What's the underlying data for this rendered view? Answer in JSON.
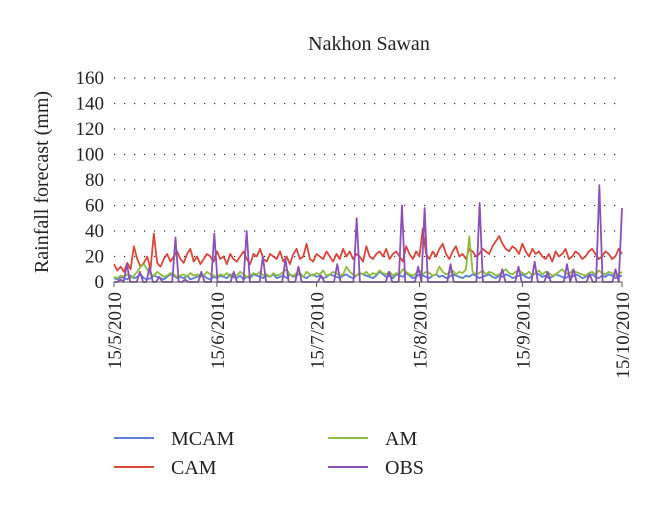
{
  "chart_data": {
    "type": "line",
    "title": "Nakhon Sawan",
    "xlabel": "",
    "ylabel": "Rainfall forecast (mm)",
    "ylim": [
      0,
      160
    ],
    "yticks": [
      0,
      20,
      40,
      60,
      80,
      100,
      120,
      140,
      160
    ],
    "x_start": "15/5/2010",
    "x_end": "15/10/2010",
    "x_tick_labels": [
      "15/5/2010",
      "15/6/2010",
      "15/7/2010",
      "15/8/2010",
      "15/9/2010",
      "15/10/2010"
    ],
    "grid": "horizontal dotted",
    "legend_position": "bottom",
    "colors": {
      "MCAM": "#5b7fd6",
      "CAM": "#d9463c",
      "AM": "#8fbc3f",
      "OBS": "#8b4fb8"
    },
    "series": [
      {
        "name": "MCAM",
        "values": [
          3,
          2,
          4,
          3,
          2,
          5,
          3,
          4,
          6,
          3,
          2,
          3,
          5,
          4,
          3,
          2,
          4,
          6,
          5,
          3,
          4,
          3,
          5,
          2,
          3,
          4,
          6,
          5,
          3,
          2,
          4,
          3,
          5,
          4,
          3,
          6,
          4,
          3,
          5,
          2,
          4,
          3,
          6,
          5,
          4,
          3,
          5,
          4,
          6,
          3,
          4,
          5,
          3,
          6,
          4,
          5,
          7,
          4,
          3,
          5,
          6,
          4,
          5,
          3,
          4,
          6,
          5,
          4,
          3,
          5,
          6,
          4,
          3,
          5,
          7,
          6,
          5,
          4,
          3,
          5,
          8,
          6,
          4,
          5,
          3,
          6,
          5,
          4,
          7,
          5,
          3,
          4,
          6,
          5,
          4,
          3,
          5,
          6,
          4,
          5,
          3,
          4,
          6,
          5,
          4,
          3,
          5,
          4,
          6,
          5,
          3,
          4,
          5,
          6,
          4,
          3,
          5,
          4,
          6,
          5,
          3,
          4,
          5,
          6,
          4,
          3,
          5,
          7,
          6,
          4,
          5,
          3,
          4,
          6,
          5,
          4,
          3,
          5,
          4,
          6,
          5,
          3,
          4,
          5,
          6,
          4,
          3,
          5,
          4,
          6,
          5,
          3,
          4,
          5
        ]
      },
      {
        "name": "CAM",
        "values": [
          14,
          9,
          12,
          8,
          15,
          10,
          28,
          18,
          12,
          15,
          20,
          10,
          38,
          15,
          12,
          18,
          22,
          16,
          20,
          24,
          18,
          15,
          22,
          26,
          16,
          20,
          14,
          18,
          22,
          20,
          16,
          24,
          18,
          20,
          14,
          22,
          18,
          16,
          20,
          24,
          18,
          14,
          22,
          20,
          26,
          18,
          16,
          22,
          20,
          18,
          24,
          16,
          20,
          14,
          22,
          26,
          18,
          20,
          30,
          18,
          16,
          22,
          20,
          18,
          24,
          20,
          16,
          22,
          18,
          26,
          20,
          24,
          18,
          22,
          20,
          16,
          28,
          20,
          18,
          22,
          24,
          20,
          26,
          18,
          22,
          24,
          20,
          16,
          28,
          22,
          18,
          24,
          20,
          42,
          22,
          18,
          24,
          20,
          26,
          30,
          22,
          18,
          24,
          28,
          20,
          22,
          18,
          26,
          24,
          20,
          22,
          26,
          24,
          22,
          28,
          32,
          36,
          30,
          26,
          24,
          28,
          26,
          22,
          30,
          24,
          20,
          26,
          22,
          24,
          20,
          18,
          22,
          16,
          24,
          20,
          22,
          26,
          18,
          20,
          24,
          22,
          18,
          20,
          24,
          26,
          22,
          18,
          20,
          24,
          22,
          18,
          20,
          26,
          22
        ]
      },
      {
        "name": "AM",
        "values": [
          4,
          3,
          5,
          4,
          6,
          3,
          5,
          8,
          12,
          14,
          10,
          6,
          5,
          8,
          6,
          4,
          5,
          7,
          6,
          4,
          5,
          6,
          4,
          7,
          5,
          6,
          4,
          5,
          8,
          6,
          5,
          4,
          6,
          5,
          7,
          4,
          6,
          5,
          8,
          6,
          4,
          5,
          7,
          6,
          8,
          5,
          6,
          4,
          7,
          5,
          6,
          8,
          10,
          6,
          5,
          7,
          6,
          4,
          8,
          6,
          5,
          7,
          6,
          9,
          5,
          6,
          8,
          7,
          5,
          6,
          12,
          8,
          6,
          5,
          7,
          6,
          8,
          5,
          7,
          6,
          9,
          7,
          6,
          8,
          5,
          7,
          6,
          10,
          8,
          6,
          5,
          7,
          9,
          6,
          8,
          7,
          5,
          6,
          12,
          8,
          6,
          7,
          9,
          6,
          8,
          7,
          10,
          36,
          8,
          6,
          7,
          9,
          6,
          8,
          7,
          5,
          6,
          8,
          10,
          7,
          6,
          8,
          9,
          7,
          6,
          8,
          5,
          7,
          9,
          6,
          8,
          7,
          5,
          6,
          8,
          10,
          7,
          6,
          9,
          8,
          7,
          6,
          5,
          7,
          8,
          6,
          9,
          7,
          6,
          8,
          7,
          5,
          6,
          8
        ]
      },
      {
        "name": "OBS",
        "values": [
          0,
          0,
          2,
          0,
          14,
          0,
          0,
          0,
          8,
          0,
          0,
          12,
          0,
          0,
          4,
          0,
          0,
          0,
          0,
          35,
          0,
          0,
          2,
          0,
          0,
          0,
          0,
          8,
          0,
          0,
          0,
          38,
          0,
          0,
          0,
          0,
          0,
          8,
          0,
          0,
          0,
          40,
          0,
          0,
          0,
          0,
          20,
          0,
          0,
          0,
          0,
          0,
          0,
          18,
          0,
          0,
          0,
          12,
          0,
          0,
          0,
          0,
          0,
          0,
          5,
          0,
          0,
          0,
          0,
          14,
          0,
          0,
          0,
          0,
          0,
          50,
          0,
          0,
          0,
          0,
          0,
          0,
          0,
          0,
          0,
          8,
          0,
          0,
          0,
          60,
          0,
          0,
          0,
          0,
          12,
          0,
          58,
          0,
          0,
          0,
          0,
          0,
          0,
          0,
          14,
          0,
          0,
          0,
          0,
          0,
          0,
          0,
          0,
          62,
          0,
          0,
          0,
          0,
          0,
          0,
          10,
          0,
          0,
          0,
          0,
          12,
          0,
          0,
          0,
          0,
          16,
          0,
          0,
          0,
          8,
          0,
          0,
          0,
          0,
          0,
          14,
          0,
          10,
          0,
          0,
          0,
          0,
          6,
          0,
          0,
          76,
          0,
          0,
          0,
          0,
          10,
          0,
          58
        ]
      }
    ]
  }
}
